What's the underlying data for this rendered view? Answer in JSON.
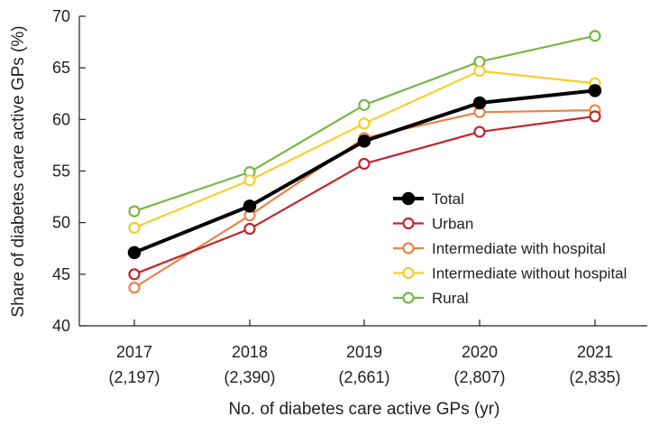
{
  "chart_data": {
    "type": "line",
    "title": "",
    "xlabel": "No. of diabetes care active GPs (yr)",
    "ylabel": "Share of diabetes care active GPs (%)",
    "ylim": [
      40,
      70
    ],
    "yticks": [
      40,
      45,
      50,
      55,
      60,
      65,
      70
    ],
    "categories": [
      "2017",
      "2018",
      "2019",
      "2020",
      "2021"
    ],
    "category_sublabels": [
      "(2,197)",
      "(2,390)",
      "(2,661)",
      "(2,807)",
      "(2,835)"
    ],
    "legend_position": "center-right",
    "series": [
      {
        "name": "Total",
        "color": "#000000",
        "filled": true,
        "values": [
          47.1,
          51.6,
          57.9,
          61.6,
          62.8
        ]
      },
      {
        "name": "Urban",
        "color": "#c0272d",
        "filled": false,
        "values": [
          45.0,
          49.4,
          55.7,
          58.8,
          60.3
        ]
      },
      {
        "name": "Intermediate with hospital",
        "color": "#e8844a",
        "filled": false,
        "values": [
          43.7,
          50.7,
          58.2,
          60.7,
          60.9
        ]
      },
      {
        "name": "Intermediate without hospital",
        "color": "#f5cf2b",
        "filled": false,
        "values": [
          49.5,
          54.1,
          59.6,
          64.7,
          63.5
        ]
      },
      {
        "name": "Rural",
        "color": "#7ab648",
        "filled": false,
        "values": [
          51.1,
          54.9,
          61.4,
          65.6,
          68.1
        ]
      }
    ]
  }
}
